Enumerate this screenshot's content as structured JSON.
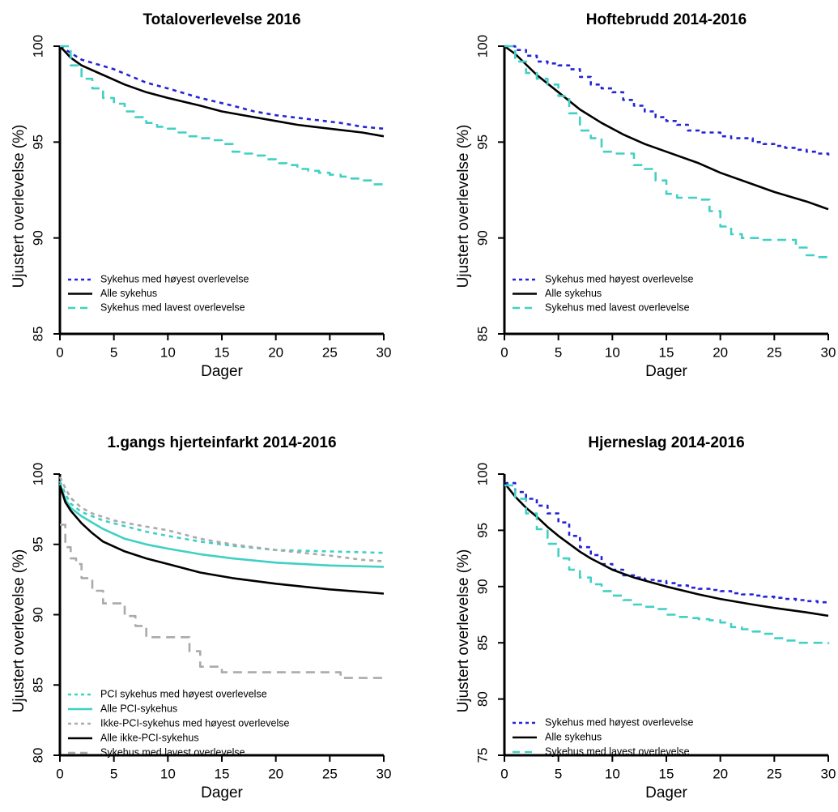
{
  "chart_data": [
    {
      "type": "line",
      "title": "Totaloverlevelse 2016",
      "xlabel": "Dager",
      "ylabel": "Ujustert overlevelse (%)",
      "xlim": [
        0,
        30
      ],
      "ylim": [
        85,
        100
      ],
      "xticks": [
        "0",
        "5",
        "10",
        "15",
        "20",
        "25",
        "30"
      ],
      "yticks": [
        "85",
        "90",
        "95",
        "100"
      ],
      "grid": false,
      "legend_position": "bottom-left",
      "series": [
        {
          "name": "Sykehus med høyest overlevelse",
          "color": "#2424d6",
          "dash": "dotted",
          "step": false,
          "x": [
            0,
            2,
            5,
            8,
            10,
            13,
            16,
            18,
            20,
            23,
            26,
            28,
            30
          ],
          "y": [
            100,
            99.3,
            98.8,
            98.1,
            97.8,
            97.3,
            96.9,
            96.6,
            96.4,
            96.2,
            96.0,
            95.8,
            95.7
          ]
        },
        {
          "name": "Alle sykehus",
          "color": "#000000",
          "dash": "solid",
          "step": false,
          "x": [
            0,
            1,
            2,
            4,
            6,
            8,
            10,
            13,
            15,
            18,
            20,
            22,
            25,
            28,
            30
          ],
          "y": [
            100,
            99.4,
            99.0,
            98.5,
            98.0,
            97.6,
            97.3,
            96.9,
            96.6,
            96.3,
            96.1,
            95.9,
            95.7,
            95.5,
            95.3
          ]
        },
        {
          "name": "Sykehus med lavest overlevelse",
          "color": "#40d0c4",
          "dash": "dashed",
          "step": true,
          "x": [
            0,
            1,
            2,
            3,
            4,
            5,
            6,
            7,
            8,
            9,
            10,
            11,
            12,
            13,
            14,
            15,
            16,
            17,
            18,
            19,
            20,
            21,
            22,
            23,
            24,
            25,
            26,
            27,
            28,
            29,
            30
          ],
          "y": [
            100,
            99.0,
            98.3,
            97.8,
            97.3,
            97.0,
            96.6,
            96.3,
            96.0,
            95.8,
            95.7,
            95.5,
            95.3,
            95.2,
            95.1,
            94.9,
            94.5,
            94.4,
            94.3,
            94.1,
            93.9,
            93.8,
            93.6,
            93.5,
            93.4,
            93.3,
            93.2,
            93.1,
            93.0,
            92.8,
            92.6
          ]
        }
      ]
    },
    {
      "type": "line",
      "title": "Hoftebrudd 2014-2016",
      "xlabel": "Dager",
      "ylabel": "Ujustert overlevelse (%)",
      "xlim": [
        0,
        30
      ],
      "ylim": [
        85,
        100
      ],
      "xticks": [
        "0",
        "5",
        "10",
        "15",
        "20",
        "25",
        "30"
      ],
      "yticks": [
        "85",
        "90",
        "95",
        "100"
      ],
      "grid": false,
      "legend_position": "bottom-left",
      "series": [
        {
          "name": "Sykehus med høyest overlevelse",
          "color": "#2424d6",
          "dash": "dotted",
          "step": true,
          "x": [
            0,
            1,
            2,
            3,
            4,
            5,
            6,
            7,
            8,
            9,
            10,
            11,
            12,
            13,
            14,
            15,
            16,
            17,
            18,
            19,
            20,
            21,
            22,
            23,
            24,
            25,
            26,
            27,
            28,
            29,
            30
          ],
          "y": [
            100,
            99.8,
            99.5,
            99.2,
            99.1,
            99.0,
            98.8,
            98.4,
            98.0,
            97.8,
            97.6,
            97.2,
            96.9,
            96.6,
            96.3,
            96.1,
            95.9,
            95.6,
            95.5,
            95.5,
            95.3,
            95.2,
            95.2,
            95.0,
            94.9,
            94.8,
            94.7,
            94.6,
            94.5,
            94.4,
            94.3
          ]
        },
        {
          "name": "Alle sykehus",
          "color": "#000000",
          "dash": "solid",
          "step": false,
          "x": [
            0,
            1,
            3,
            5,
            7,
            9,
            11,
            13,
            15,
            18,
            20,
            23,
            25,
            28,
            30
          ],
          "y": [
            100,
            99.6,
            98.5,
            97.6,
            96.7,
            96.0,
            95.4,
            94.9,
            94.5,
            93.9,
            93.4,
            92.8,
            92.4,
            91.9,
            91.5
          ]
        },
        {
          "name": "Sykehus med lavest overlevelse",
          "color": "#40d0c4",
          "dash": "dashed",
          "step": true,
          "x": [
            0,
            1,
            2,
            3,
            4,
            5,
            6,
            7,
            8,
            9,
            10,
            11,
            12,
            13,
            14,
            15,
            16,
            17,
            18,
            19,
            20,
            21,
            22,
            23,
            24,
            25,
            26,
            27,
            28,
            29,
            30
          ],
          "y": [
            100,
            99.2,
            98.6,
            98.3,
            98.0,
            97.4,
            96.5,
            95.6,
            95.2,
            94.5,
            94.4,
            94.4,
            93.8,
            93.6,
            93.0,
            92.3,
            92.1,
            92.1,
            92.0,
            91.4,
            90.6,
            90.2,
            90.0,
            90.0,
            89.9,
            89.9,
            89.9,
            89.5,
            89.1,
            89.0,
            88.9
          ]
        }
      ]
    },
    {
      "type": "line",
      "title": "1.gangs hjerteinfarkt 2014-2016",
      "xlabel": "Dager",
      "ylabel": "Ujustert overlevelse (%)",
      "xlim": [
        0,
        30
      ],
      "ylim": [
        80,
        100
      ],
      "xticks": [
        "0",
        "5",
        "10",
        "15",
        "20",
        "25",
        "30"
      ],
      "yticks": [
        "80",
        "85",
        "90",
        "95",
        "100"
      ],
      "grid": false,
      "legend_position": "bottom-left",
      "series": [
        {
          "name": "PCI sykehus med høyest overlevelse",
          "color": "#40d0c4",
          "dash": "dotted",
          "step": false,
          "x": [
            0,
            0.5,
            1,
            2,
            4,
            6,
            8,
            10,
            13,
            16,
            20,
            25,
            30
          ],
          "y": [
            99.5,
            98.6,
            97.9,
            97.3,
            96.7,
            96.3,
            95.9,
            95.6,
            95.2,
            94.9,
            94.6,
            94.5,
            94.4
          ]
        },
        {
          "name": "Alle PCI-sykehus",
          "color": "#40d0c4",
          "dash": "solid",
          "step": false,
          "x": [
            0,
            0.5,
            1,
            2,
            4,
            6,
            8,
            10,
            13,
            16,
            20,
            25,
            30
          ],
          "y": [
            99.3,
            98.2,
            97.6,
            97.0,
            96.1,
            95.4,
            95.0,
            94.7,
            94.3,
            94.0,
            93.7,
            93.5,
            93.4
          ]
        },
        {
          "name": "Ikke-PCI-sykehus med høyest overlevelse",
          "color": "#aaaaaa",
          "dash": "dotted",
          "step": false,
          "x": [
            0,
            0.5,
            1,
            2,
            3,
            5,
            7,
            10,
            13,
            16,
            20,
            25,
            28,
            30
          ],
          "y": [
            99.8,
            99.0,
            98.3,
            97.6,
            97.2,
            96.7,
            96.4,
            96.0,
            95.4,
            95.0,
            94.6,
            94.2,
            93.9,
            93.8
          ]
        },
        {
          "name": "Alle ikke-PCI-sykehus",
          "color": "#000000",
          "dash": "solid",
          "step": false,
          "x": [
            0,
            0.5,
            1,
            2,
            3,
            4,
            6,
            8,
            10,
            13,
            16,
            20,
            25,
            30
          ],
          "y": [
            99.2,
            98.0,
            97.4,
            96.5,
            95.8,
            95.2,
            94.5,
            94.0,
            93.6,
            93.0,
            92.6,
            92.2,
            91.8,
            91.5
          ]
        },
        {
          "name": "Sykehus med lavest overlevelse",
          "color": "#aaaaaa",
          "dash": "dashed",
          "step": true,
          "x": [
            0,
            0.5,
            1,
            1.5,
            2,
            3,
            4,
            5,
            6,
            7,
            8,
            10,
            12,
            13,
            15,
            20,
            26,
            30
          ],
          "y": [
            96.4,
            94.8,
            94.0,
            93.6,
            92.6,
            91.7,
            90.8,
            90.8,
            89.9,
            89.2,
            88.4,
            88.4,
            87.4,
            86.3,
            85.9,
            85.9,
            85.5,
            85.5
          ]
        }
      ]
    },
    {
      "type": "line",
      "title": "Hjerneslag 2014-2016",
      "xlabel": "Dager",
      "ylabel": "Ujustert overlevelse (%)",
      "xlim": [
        0,
        30
      ],
      "ylim": [
        75,
        100
      ],
      "xticks": [
        "0",
        "5",
        "10",
        "15",
        "20",
        "25",
        "30"
      ],
      "yticks": [
        "75",
        "80",
        "85",
        "90",
        "95",
        "100"
      ],
      "grid": false,
      "legend_position": "bottom-left",
      "series": [
        {
          "name": "Sykehus med høyest overlevelse",
          "color": "#2424d6",
          "dash": "dotted",
          "step": true,
          "x": [
            0,
            1,
            2,
            3,
            4,
            5,
            6,
            7,
            8,
            9,
            10,
            11,
            12,
            13,
            14,
            15,
            16,
            17,
            18,
            19,
            20,
            21,
            22,
            23,
            24,
            25,
            26,
            27,
            28,
            29,
            30
          ],
          "y": [
            99.2,
            98.4,
            97.8,
            97.2,
            96.5,
            95.7,
            94.5,
            93.5,
            92.8,
            92.0,
            91.5,
            91.0,
            90.8,
            90.6,
            90.5,
            90.3,
            90.1,
            89.9,
            89.8,
            89.7,
            89.6,
            89.4,
            89.3,
            89.2,
            89.1,
            89.0,
            88.9,
            88.8,
            88.7,
            88.6,
            88.6
          ]
        },
        {
          "name": "Alle sykehus",
          "color": "#000000",
          "dash": "solid",
          "step": false,
          "x": [
            0,
            1,
            2,
            3,
            4,
            5,
            6,
            7,
            8,
            9,
            10,
            12,
            15,
            18,
            20,
            23,
            25,
            28,
            30
          ],
          "y": [
            99.2,
            98.0,
            97.0,
            96.2,
            95.3,
            94.5,
            93.8,
            93.1,
            92.5,
            92.0,
            91.5,
            90.8,
            90.0,
            89.3,
            88.9,
            88.4,
            88.1,
            87.7,
            87.4
          ]
        },
        {
          "name": "Sykehus med lavest overlevelse",
          "color": "#40d0c4",
          "dash": "dashed",
          "step": true,
          "x": [
            0,
            1,
            2,
            3,
            4,
            5,
            6,
            7,
            8,
            9,
            10,
            11,
            12,
            13,
            14,
            15,
            16,
            17,
            18,
            19,
            20,
            21,
            22,
            23,
            24,
            25,
            26,
            27,
            28,
            29,
            30
          ],
          "y": [
            99.0,
            97.8,
            96.5,
            95.1,
            93.8,
            92.5,
            91.5,
            90.8,
            90.2,
            89.6,
            89.2,
            88.8,
            88.4,
            88.2,
            88.0,
            87.5,
            87.3,
            87.2,
            87.1,
            87.0,
            86.8,
            86.4,
            86.2,
            86.0,
            85.8,
            85.4,
            85.2,
            85.0,
            85.0,
            85.0,
            84.9
          ]
        }
      ]
    }
  ]
}
